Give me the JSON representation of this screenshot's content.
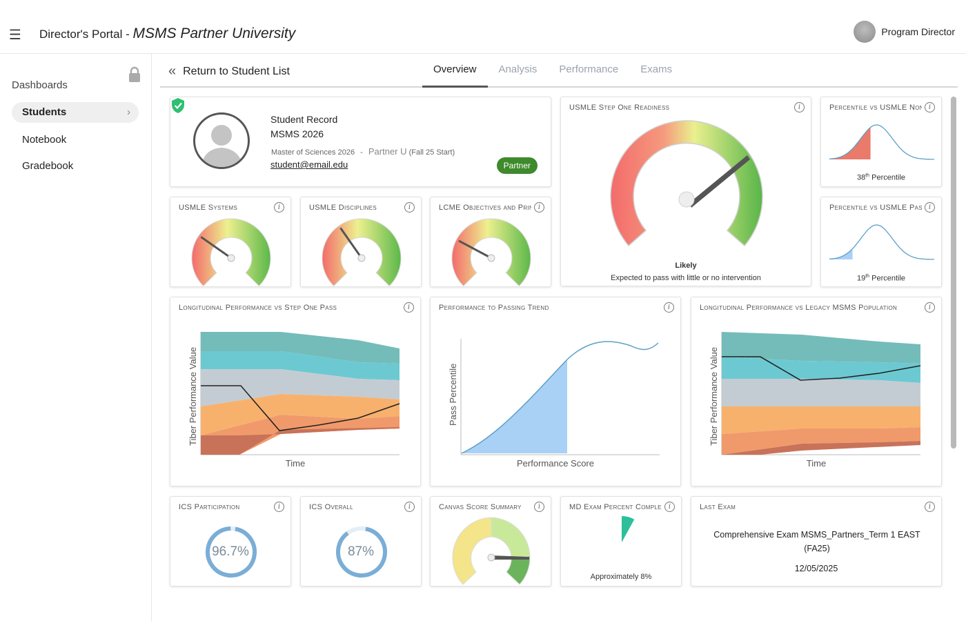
{
  "header": {
    "portal_label": "Director's Portal - ",
    "university": "MSMS Partner University",
    "user_name": "Program Director"
  },
  "sidebar": {
    "section_label": "Dashboards",
    "items": [
      {
        "label": "Students",
        "active": true
      },
      {
        "label": "Notebook",
        "active": false
      },
      {
        "label": "Gradebook",
        "active": false
      }
    ]
  },
  "subnav": {
    "back_label": "Return to Student List",
    "tabs": [
      "Overview",
      "Analysis",
      "Performance",
      "Exams"
    ],
    "active_tab": "Overview"
  },
  "student": {
    "record_label": "Student Record",
    "cohort": "MSMS 2026",
    "program": "Master of Sciences 2026",
    "separator": "-",
    "partner": "Partner U",
    "start_term": "(Fall 25 Start)",
    "email": "student@email.edu",
    "badge": "Partner"
  },
  "cards": {
    "step_one_readiness": {
      "title": "USMLE Step One Readiness",
      "status": "Likely",
      "description": "Expected to pass with little or no intervention"
    },
    "pct_non_pass": {
      "title": "Percentile vs USMLE Non-Pass",
      "percentile": "38",
      "suffix": "th",
      "label": "Percentile",
      "fraction": 0.38
    },
    "pct_pass": {
      "title": "Percentile vs USMLE Pass",
      "percentile": "19",
      "suffix": "th",
      "label": "Percentile",
      "fraction": 0.19
    },
    "systems": {
      "title": "USMLE Systems"
    },
    "disciplines": {
      "title": "USMLE Disciplines"
    },
    "lcme": {
      "title": "LCME Objectives and Principles"
    },
    "long_step_one": {
      "title": "Longitudinal Performance vs Step One Pass",
      "ylabel": "Tiber Performance Value",
      "xlabel": "Time"
    },
    "passing_trend": {
      "title": "Performance to Passing Trend",
      "ylabel": "Pass Percentile",
      "xlabel": "Performance Score"
    },
    "long_legacy": {
      "title": "Longitudinal Performance vs Legacy MSMS Population",
      "ylabel": "Tiber Performance Value",
      "xlabel": "Time"
    },
    "ics_participation": {
      "title": "ICS Participation",
      "value": "96.7%",
      "fraction": 0.967
    },
    "ics_overall": {
      "title": "ICS Overall",
      "value": "87%",
      "fraction": 0.87
    },
    "canvas_summary": {
      "title": "Canvas Score Summary"
    },
    "md_exam": {
      "title": "MD Exam Percent Complete",
      "value": "Approximately 8%",
      "fraction": 0.08
    },
    "last_exam": {
      "title": "Last Exam",
      "name": "Comprehensive Exam MSMS_Partners_Term 1 EAST (FA25)",
      "date": "12/05/2025"
    }
  },
  "colors": {
    "accent": "#3e8a2c",
    "gauge_red": "#f08080",
    "gauge_yellow": "#e8f08a",
    "gauge_green": "#7ec86a",
    "ring": "#7aaed6",
    "bell_red": "#ea7a6a",
    "bell_blue": "#a9d1f5",
    "teal": "#2bbf9b"
  },
  "icons": {
    "menu": "hamburger-icon",
    "lock": "lock-icon",
    "back": "double-chevron-left-icon",
    "info": "info-icon",
    "verified": "shield-check-icon"
  }
}
